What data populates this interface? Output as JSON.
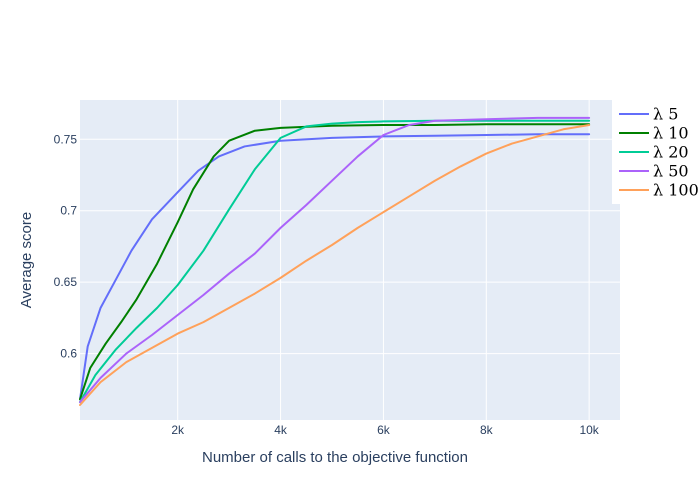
{
  "chart_data": {
    "type": "line",
    "xlabel": "Number of calls to the objective function",
    "ylabel": "Average score",
    "xlim": [
      100,
      10600
    ],
    "ylim": [
      0.5535,
      0.7775
    ],
    "x_ticks": [
      2000,
      4000,
      6000,
      8000,
      10000
    ],
    "x_tick_labels": [
      "2k",
      "4k",
      "6k",
      "8k",
      "10k"
    ],
    "y_ticks": [
      0.6,
      0.65,
      0.7,
      0.75
    ],
    "y_tick_labels": [
      "0.6",
      "0.65",
      "0.7",
      "0.75"
    ],
    "grid": true,
    "legend_position": "top-right",
    "series": [
      {
        "name": "λ 5",
        "color": "#636efa",
        "x": [
          100,
          250,
          500,
          800,
          1100,
          1500,
          2000,
          2400,
          2800,
          3300,
          4000,
          5000,
          6000,
          7000,
          8000,
          9000,
          10000
        ],
        "y": [
          0.568,
          0.605,
          0.632,
          0.652,
          0.672,
          0.694,
          0.713,
          0.728,
          0.738,
          0.745,
          0.749,
          0.751,
          0.752,
          0.7525,
          0.753,
          0.7535,
          0.7535
        ]
      },
      {
        "name": "λ 10",
        "color": "#008000",
        "x": [
          100,
          300,
          600,
          900,
          1200,
          1600,
          2000,
          2300,
          2700,
          3000,
          3500,
          4000,
          5000,
          6000,
          7000,
          8000,
          10000
        ],
        "y": [
          0.568,
          0.59,
          0.607,
          0.622,
          0.638,
          0.663,
          0.692,
          0.715,
          0.738,
          0.749,
          0.756,
          0.758,
          0.7595,
          0.76,
          0.76,
          0.7605,
          0.7605
        ]
      },
      {
        "name": "λ 20",
        "color": "#00cc96",
        "x": [
          100,
          400,
          800,
          1200,
          1600,
          2000,
          2500,
          3000,
          3500,
          4000,
          4500,
          5000,
          5500,
          6000,
          7000,
          8000,
          10000
        ],
        "y": [
          0.566,
          0.585,
          0.603,
          0.618,
          0.632,
          0.648,
          0.672,
          0.701,
          0.729,
          0.751,
          0.759,
          0.761,
          0.762,
          0.7625,
          0.763,
          0.763,
          0.763
        ]
      },
      {
        "name": "λ 50",
        "color": "#ab63fa",
        "x": [
          100,
          500,
          1000,
          1500,
          2000,
          2500,
          3000,
          3500,
          4000,
          4500,
          5000,
          5500,
          6000,
          6500,
          7000,
          8000,
          9000,
          10000
        ],
        "y": [
          0.566,
          0.583,
          0.6,
          0.613,
          0.627,
          0.641,
          0.656,
          0.67,
          0.688,
          0.704,
          0.721,
          0.738,
          0.753,
          0.76,
          0.763,
          0.764,
          0.765,
          0.765
        ]
      },
      {
        "name": "λ 100",
        "color": "#ffa15a",
        "x": [
          100,
          500,
          1000,
          1500,
          2000,
          2500,
          3000,
          3500,
          4000,
          4500,
          5000,
          5500,
          6000,
          6500,
          7000,
          7500,
          8000,
          8500,
          9000,
          9500,
          10000
        ],
        "y": [
          0.564,
          0.58,
          0.594,
          0.604,
          0.614,
          0.622,
          0.632,
          0.642,
          0.653,
          0.665,
          0.676,
          0.688,
          0.699,
          0.71,
          0.721,
          0.731,
          0.74,
          0.747,
          0.752,
          0.757,
          0.76
        ]
      }
    ]
  }
}
